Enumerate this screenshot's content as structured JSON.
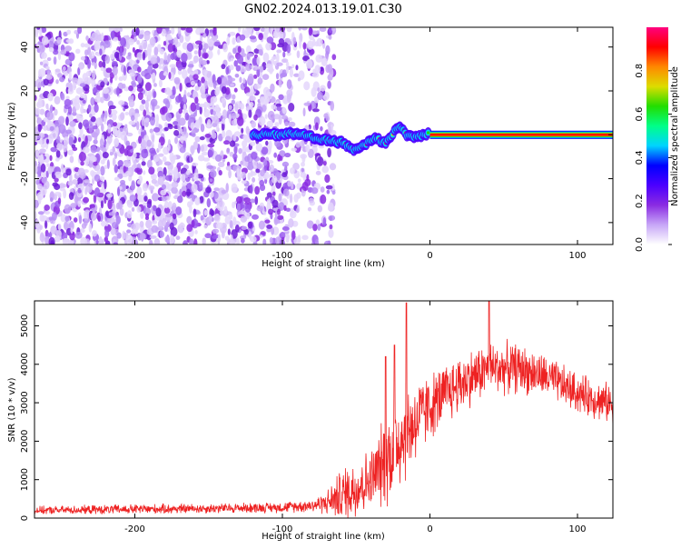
{
  "title": "GN02.2024.013.19.01.C30",
  "chart_data": [
    {
      "type": "heatmap",
      "xlabel": "Height of straight line (km)",
      "ylabel": "Frequency (Hz)",
      "xlim": [
        -268,
        124
      ],
      "ylim": [
        -50,
        49
      ],
      "x_ticks": [
        -200,
        -100,
        0,
        100
      ],
      "y_ticks": [
        -40,
        -20,
        0,
        20,
        40
      ],
      "grid": false,
      "colorbar": {
        "label": "Normalized spectral amplitude",
        "range": [
          0.0,
          1.0
        ],
        "ticks": [
          0.0,
          0.2,
          0.4,
          0.6,
          0.8
        ],
        "colormap": [
          "#ffffff",
          "#c7a6f7",
          "#8a2be2",
          "#4b00ff",
          "#0000ff",
          "#00d4ff",
          "#00ff88",
          "#22dd00",
          "#dddd00",
          "#ff8800",
          "#ff0000",
          "#ff007f"
        ]
      },
      "features": {
        "noise_region_x": [
          -268,
          -80
        ],
        "noise_amplitude": [
          0.0,
          0.15
        ],
        "signal_track": [
          [
            -120,
            0.0
          ],
          [
            -105,
            0.0
          ],
          [
            -95,
            0.5
          ],
          [
            -85,
            0.0
          ],
          [
            -78,
            -1.5
          ],
          [
            -70,
            -2.5
          ],
          [
            -60,
            -3.5
          ],
          [
            -50,
            -7.0
          ],
          [
            -45,
            -5.0
          ],
          [
            -38,
            -1.5
          ],
          [
            -30,
            -3.5
          ],
          [
            -25,
            1.0
          ],
          [
            -20,
            3.5
          ],
          [
            -15,
            -0.5
          ],
          [
            -8,
            -1.0
          ],
          [
            -3,
            0.5
          ],
          [
            0,
            0.5
          ],
          [
            124,
            0.0
          ]
        ],
        "carrier_x": [
          0,
          124
        ],
        "carrier_freq": 0.0,
        "carrier_amplitude": 1.0
      }
    },
    {
      "type": "line",
      "xlabel": "Height of straight line (km)",
      "ylabel": "SNR (10 * v/v)",
      "xlim": [
        -268,
        124
      ],
      "ylim": [
        0,
        5650
      ],
      "x_ticks": [
        -200,
        -100,
        0,
        100
      ],
      "y_ticks": [
        0,
        1000,
        2000,
        3000,
        4000,
        5000
      ],
      "grid": false,
      "series": [
        {
          "color": "#ee2222",
          "envelope_x": [
            -268,
            -200,
            -150,
            -100,
            -80,
            -70,
            -60,
            -50,
            -40,
            -30,
            -20,
            -10,
            0,
            20,
            40,
            60,
            80,
            100,
            124
          ],
          "envelope_mid": [
            200,
            230,
            250,
            280,
            330,
            400,
            600,
            800,
            1000,
            1500,
            2100,
            2500,
            2900,
            3500,
            3900,
            3900,
            3650,
            3250,
            2950
          ],
          "envelope_spread": [
            120,
            150,
            150,
            160,
            200,
            350,
            800,
            1000,
            900,
            1400,
            1600,
            1300,
            1000,
            900,
            800,
            750,
            650,
            600,
            600
          ],
          "peaks": [
            [
              -16,
              5600
            ],
            [
              -24,
              4500
            ],
            [
              -30,
              4200
            ],
            [
              40,
              5650
            ]
          ]
        }
      ]
    }
  ]
}
